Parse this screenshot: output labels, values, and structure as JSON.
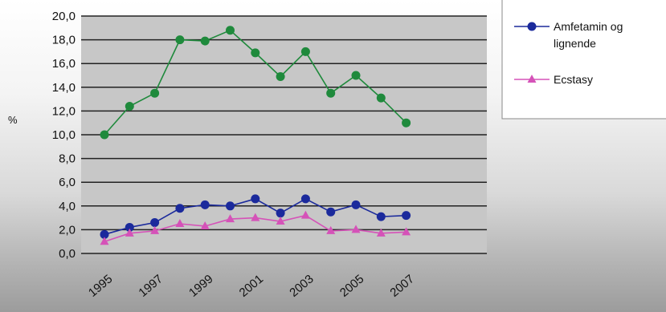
{
  "chart_data": {
    "type": "line",
    "ylabel": "%",
    "ylim": [
      0,
      20
    ],
    "y_ticks": [
      "0,0",
      "2,0",
      "4,0",
      "6,0",
      "8,0",
      "10,0",
      "12,0",
      "14,0",
      "16,0",
      "18,0",
      "20,0"
    ],
    "x": [
      1995,
      1996,
      1997,
      1998,
      1999,
      2000,
      2001,
      2002,
      2003,
      2004,
      2005,
      2006,
      2007
    ],
    "x_tick_labels": [
      "1995",
      "",
      "1997",
      "",
      "1999",
      "",
      "2001",
      "",
      "2003",
      "",
      "2005",
      "",
      "2007"
    ],
    "grid": true,
    "legend_position": "right",
    "series": [
      {
        "name": "",
        "color": "#1f8a3c",
        "marker": "circle",
        "values": [
          10.0,
          12.4,
          13.5,
          18.0,
          17.9,
          18.8,
          16.9,
          14.9,
          17.0,
          13.5,
          15.0,
          13.1,
          11.0
        ]
      },
      {
        "name": "Amfetamin og lignende",
        "color": "#1b2a9c",
        "marker": "circle",
        "values": [
          1.6,
          2.2,
          2.6,
          3.8,
          4.1,
          4.0,
          4.6,
          3.4,
          4.6,
          3.5,
          4.1,
          3.1,
          3.2
        ]
      },
      {
        "name": "Ecstasy",
        "color": "#d552b8",
        "marker": "triangle",
        "values": [
          1.0,
          1.7,
          1.9,
          2.5,
          2.3,
          2.9,
          3.0,
          2.7,
          3.2,
          1.9,
          2.0,
          1.7,
          1.8
        ]
      }
    ],
    "legend_lines": [
      [
        "Amfetamin og",
        "lignende"
      ],
      [
        "Ecstasy"
      ]
    ]
  }
}
